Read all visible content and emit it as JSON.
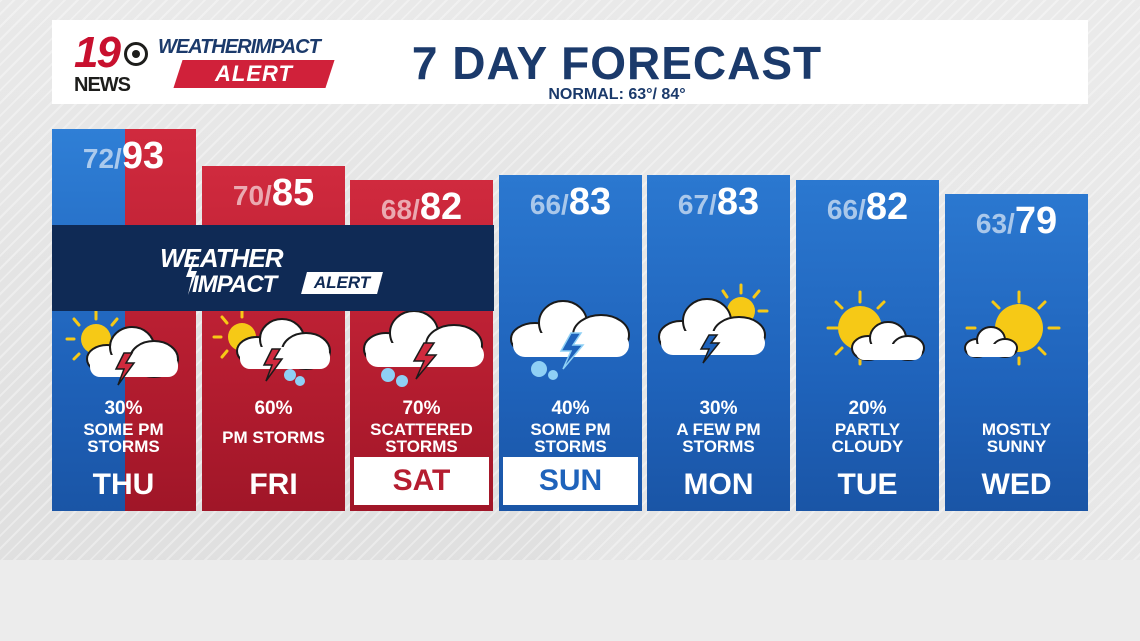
{
  "header": {
    "logo_number": "19",
    "logo_news": "NEWS",
    "brand_line1": "WEATHERIMPACT",
    "brand_line2": "ALERT",
    "title": "7 DAY FORECAST",
    "normal": "NORMAL: 63°/ 84°"
  },
  "alert_band": {
    "line1": "WEATHER",
    "line2": "IMPACT",
    "tag": "ALERT"
  },
  "days": [
    {
      "day": "THU",
      "lo": "72",
      "hi": "93",
      "pct": "30%",
      "desc1": "SOME PM",
      "desc2": "STORMS",
      "icon": "partly-sunny-thunderstorm-icon"
    },
    {
      "day": "FRI",
      "lo": "70",
      "hi": "85",
      "pct": "60%",
      "desc1": "PM STORMS",
      "desc2": "",
      "icon": "sunny-thunderstorm-rain-icon"
    },
    {
      "day": "SAT",
      "lo": "68",
      "hi": "82",
      "pct": "70%",
      "desc1": "SCATTERED",
      "desc2": "STORMS",
      "icon": "thunderstorm-rain-icon"
    },
    {
      "day": "SUN",
      "lo": "66",
      "hi": "83",
      "pct": "40%",
      "desc1": "SOME PM",
      "desc2": "STORMS",
      "icon": "thunderstorm-rain-icon"
    },
    {
      "day": "MON",
      "lo": "67",
      "hi": "83",
      "pct": "30%",
      "desc1": "A FEW PM",
      "desc2": "STORMS",
      "icon": "partly-sunny-thunderstorm-icon"
    },
    {
      "day": "TUE",
      "lo": "66",
      "hi": "82",
      "pct": "20%",
      "desc1": "PARTLY",
      "desc2": "CLOUDY",
      "icon": "partly-cloudy-icon"
    },
    {
      "day": "WED",
      "lo": "63",
      "hi": "79",
      "pct": "",
      "desc1": "MOSTLY",
      "desc2": "SUNNY",
      "icon": "mostly-sunny-icon"
    }
  ],
  "colors": {
    "alert_red": "#b51d30",
    "forecast_blue": "#1f63bb",
    "title_navy": "#1b3a6b",
    "alert_band_navy": "#0f2a55",
    "sun_yellow": "#f6c916"
  }
}
